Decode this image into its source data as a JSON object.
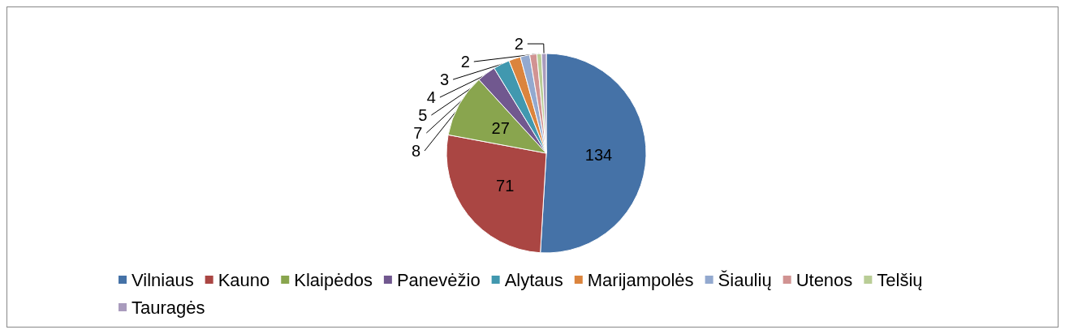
{
  "chart_data": {
    "type": "pie",
    "categories": [
      "Vilniaus",
      "Kauno",
      "Klaipėdos",
      "Panevėžio",
      "Alytaus",
      "Marijampolės",
      "Šiaulių",
      "Utenos",
      "Telšių",
      "Tauragės"
    ],
    "values": [
      134,
      71,
      27,
      8,
      7,
      5,
      4,
      3,
      2,
      2
    ],
    "colors": [
      "#4572a7",
      "#aa4643",
      "#89a54e",
      "#71588f",
      "#4198af",
      "#db843d",
      "#93a9cf",
      "#d19392",
      "#b9cd96",
      "#a99bbd"
    ],
    "data_labels": true,
    "legend": "bottom"
  }
}
